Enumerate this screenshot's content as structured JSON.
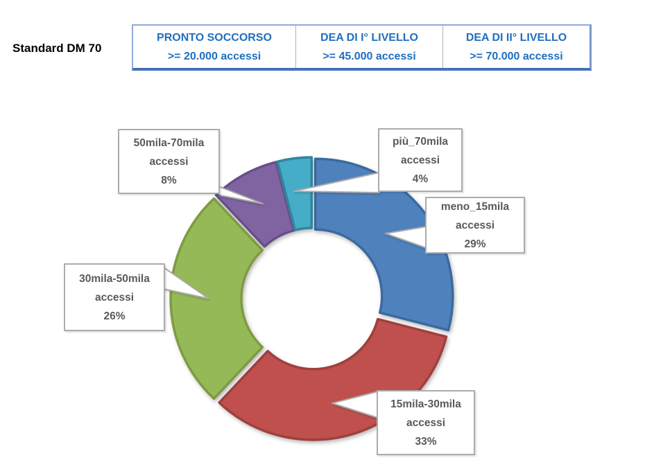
{
  "page": {
    "title": "Standard DM 70",
    "background": "#ffffff"
  },
  "standards_table": {
    "cells": [
      {
        "title": "PRONTO SOCCORSO",
        "value": ">= 20.000 accessi"
      },
      {
        "title": "DEA DI I° LIVELLO",
        "value": ">= 45.000 accessi"
      },
      {
        "title": "DEA DI II° LIVELLO",
        "value": ">= 70.000 accessi"
      }
    ],
    "text_color": "#1F6FBF",
    "border_color": "#8FAADC",
    "border_bottom_color": "#4470B8"
  },
  "chart_data": {
    "type": "pie",
    "subtype": "donut",
    "title": "",
    "categories": [
      "meno_15mila accessi",
      "15mila-30mila accessi",
      "30mila-50mila accessi",
      "50mila-70mila accessi",
      "più_70mila accessi"
    ],
    "values": [
      29,
      33,
      26,
      8,
      4
    ],
    "unit": "%",
    "colors": [
      "#4F81BD",
      "#C0504D",
      "#95B957",
      "#8064A2",
      "#45ADC8"
    ],
    "edge_colors": [
      "#3A6A9E",
      "#9E403E",
      "#7E9B42",
      "#66508A",
      "#31859C"
    ],
    "start_angle_deg": 0,
    "direction": "clockwise",
    "donut_hole_ratio": 0.48,
    "exploded": true,
    "legend": "none",
    "labels_style": "callout",
    "callouts": [
      {
        "range": "50mila-70mila",
        "unit": "accessi",
        "pct": "8%"
      },
      {
        "range": "più_70mila",
        "unit": "accessi",
        "pct": "4%"
      },
      {
        "range": "meno_15mila",
        "unit": "accessi",
        "pct": "29%"
      },
      {
        "range": "15mila-30mila",
        "unit": "accessi",
        "pct": "33%"
      },
      {
        "range": "30mila-50mila",
        "unit": "accessi",
        "pct": "26%"
      }
    ],
    "callout_text_color": "#595959",
    "callout_border_color": "#ABABAB"
  }
}
